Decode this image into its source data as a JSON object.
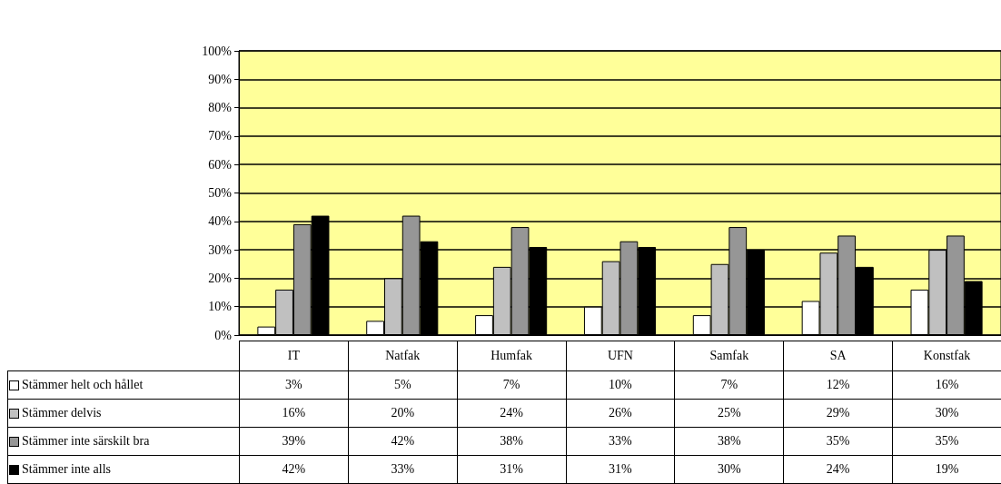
{
  "chart_data": {
    "type": "bar",
    "categories": [
      "IT",
      "Natfak",
      "Humfak",
      "UFN",
      "Samfak",
      "SA",
      "Konstfak"
    ],
    "series": [
      {
        "name": "Stämmer helt och hållet",
        "color": "#ffffff",
        "values": [
          3,
          5,
          7,
          10,
          7,
          12,
          16
        ],
        "value_labels": [
          "3%",
          "5%",
          "7%",
          "10%",
          "7%",
          "12%",
          "16%"
        ]
      },
      {
        "name": "Stämmer delvis",
        "color": "#c0c0c0",
        "values": [
          16,
          20,
          24,
          26,
          25,
          29,
          30
        ],
        "value_labels": [
          "16%",
          "20%",
          "24%",
          "26%",
          "25%",
          "29%",
          "30%"
        ]
      },
      {
        "name": "Stämmer inte särskilt bra",
        "color": "#969696",
        "values": [
          39,
          42,
          38,
          33,
          38,
          35,
          35
        ],
        "value_labels": [
          "39%",
          "42%",
          "38%",
          "33%",
          "38%",
          "35%",
          "35%"
        ]
      },
      {
        "name": "Stämmer inte alls",
        "color": "#000000",
        "values": [
          42,
          33,
          31,
          31,
          30,
          24,
          19
        ],
        "value_labels": [
          "42%",
          "33%",
          "31%",
          "31%",
          "30%",
          "24%",
          "19%"
        ]
      }
    ],
    "ylim": [
      0,
      100
    ],
    "yticks": [
      {
        "value": 0,
        "label": "0%"
      },
      {
        "value": 10,
        "label": "10%"
      },
      {
        "value": 20,
        "label": "20%"
      },
      {
        "value": 30,
        "label": "30%"
      },
      {
        "value": 40,
        "label": "40%"
      },
      {
        "value": 50,
        "label": "50%"
      },
      {
        "value": 60,
        "label": "60%"
      },
      {
        "value": 70,
        "label": "70%"
      },
      {
        "value": 80,
        "label": "80%"
      },
      {
        "value": 90,
        "label": "90%"
      },
      {
        "value": 100,
        "label": "100%"
      }
    ],
    "grid": "y",
    "legend": "bottom left"
  }
}
